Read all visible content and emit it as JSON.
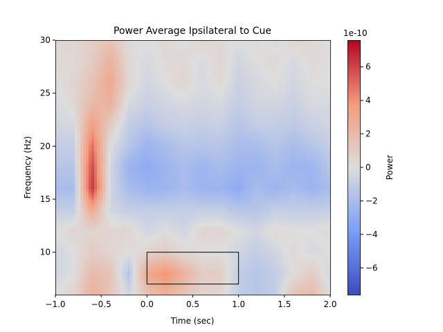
{
  "chart_data": {
    "type": "heatmap",
    "title": "Power Average Ipsilateral to Cue",
    "xlabel": "Time (sec)",
    "ylabel": "Frequency (Hz)",
    "xlim": [
      -1.0,
      2.0
    ],
    "ylim": [
      6,
      30
    ],
    "xticks": [
      "-1.0",
      "-0.5",
      "0.0",
      "0.5",
      "1.0",
      "1.5",
      "2.0"
    ],
    "xtick_values": [
      -1.0,
      -0.5,
      0.0,
      0.5,
      1.0,
      1.5,
      2.0
    ],
    "yticks": [
      "10",
      "15",
      "20",
      "25",
      "30"
    ],
    "ytick_values": [
      10,
      15,
      20,
      25,
      30
    ],
    "colormap": "coolwarm",
    "colorbar": {
      "label": "Power",
      "offset_text": "1e-10",
      "range": [
        -7.6,
        7.6
      ],
      "ticks": [
        "6",
        "4",
        "2",
        "0",
        "−2",
        "−4",
        "−6"
      ],
      "tick_values": [
        6,
        4,
        2,
        0,
        -2,
        -4,
        -6
      ]
    },
    "times": [
      -1.0,
      -0.8,
      -0.6,
      -0.4,
      -0.2,
      0.0,
      0.2,
      0.4,
      0.6,
      0.8,
      1.0,
      1.2,
      1.4,
      1.6,
      1.8,
      2.0
    ],
    "freqs": [
      30,
      28,
      26,
      24,
      22,
      20,
      18,
      16,
      14,
      12,
      10,
      8,
      6
    ],
    "values_units": "1e-10",
    "values": [
      [
        0.3,
        0.5,
        0.8,
        1.5,
        0.2,
        0,
        0.3,
        0,
        0.5,
        0.2,
        0,
        0.3,
        -0.3,
        0.5,
        0.3,
        0
      ],
      [
        0.3,
        0.2,
        1,
        2.5,
        0.3,
        -0.3,
        0.2,
        0.3,
        -0.2,
        0.5,
        -0.5,
        0,
        0.3,
        -0.3,
        0.3,
        0
      ],
      [
        0,
        0.5,
        1.5,
        3,
        0.5,
        -0.5,
        0,
        0.5,
        -0.3,
        0.3,
        -0.8,
        -0.3,
        0,
        -0.5,
        0,
        0
      ],
      [
        -0.3,
        0.3,
        2,
        2.5,
        -0.3,
        -0.8,
        -0.5,
        -0.3,
        -0.5,
        -0.3,
        -1,
        -0.5,
        -0.5,
        -0.8,
        -0.3,
        -0.3
      ],
      [
        -0.5,
        -0.3,
        3.5,
        1,
        -1,
        -1.5,
        -1,
        -0.8,
        -1,
        -0.8,
        -1.5,
        -1,
        -1,
        -1.2,
        -0.8,
        -0.5
      ],
      [
        -1,
        -1,
        5,
        0,
        -1.5,
        -2.5,
        -2,
        -1.5,
        -1.5,
        -1.5,
        -2,
        -2,
        -1.5,
        -2,
        -1.5,
        -1
      ],
      [
        -1.5,
        -1.5,
        6,
        -0.5,
        -2.5,
        -3,
        -2.5,
        -2,
        -2.5,
        -2,
        -2.5,
        -2.5,
        -2,
        -2.5,
        -2.5,
        -1.5
      ],
      [
        -2,
        -2,
        6.5,
        -0.5,
        -2,
        -2.5,
        -2.5,
        -2,
        -2.5,
        -2.5,
        -3,
        -2,
        -2.5,
        -2,
        -2.5,
        -2
      ],
      [
        -1,
        -1,
        3,
        -0.5,
        -1,
        -1,
        -1,
        -1,
        -1,
        -1,
        -1.5,
        -1.5,
        -1,
        -1,
        -1,
        -1
      ],
      [
        0,
        0.5,
        0.5,
        0.5,
        0.5,
        -0.5,
        0,
        -0.5,
        0.5,
        0.5,
        0,
        -0.5,
        0.3,
        0,
        0,
        0.3
      ],
      [
        -0.5,
        0,
        1,
        0.5,
        0,
        0.5,
        1,
        0.3,
        0,
        0,
        -0.5,
        -1,
        -0.5,
        0.3,
        -0.3,
        0
      ],
      [
        -0.5,
        0,
        2,
        1.5,
        -1.5,
        3,
        4,
        2.5,
        1,
        1,
        -1,
        -1.5,
        -1,
        0,
        1,
        -0.5
      ],
      [
        0,
        0.5,
        2.5,
        1.5,
        -0.5,
        1.5,
        2.5,
        1.5,
        0.5,
        0.5,
        -1,
        -1.5,
        -1,
        1.5,
        2,
        0
      ]
    ],
    "annotation_rectangle": {
      "time": [
        0.0,
        1.0
      ],
      "freq": [
        7,
        10
      ],
      "color": "#000000"
    }
  }
}
